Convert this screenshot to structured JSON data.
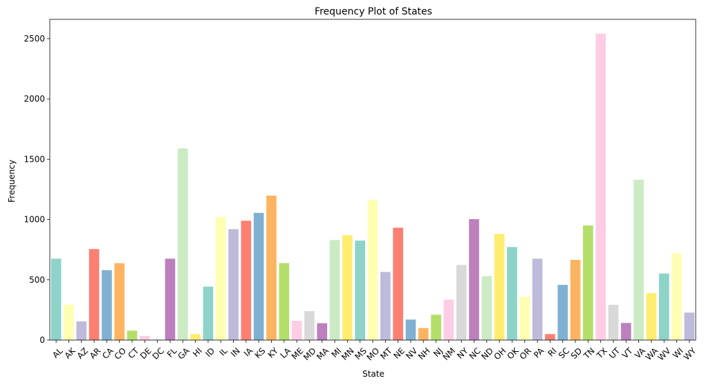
{
  "chart_data": {
    "type": "bar",
    "title": "Frequency Plot of States",
    "xlabel": "State",
    "ylabel": "Frequency",
    "ylim": [
      0,
      2660
    ],
    "yticks": [
      0,
      500,
      1000,
      1500,
      2000,
      2500
    ],
    "grid": false,
    "categories": [
      "AL",
      "AK",
      "AZ",
      "AR",
      "CA",
      "CO",
      "CT",
      "DE",
      "DC",
      "FL",
      "GA",
      "HI",
      "ID",
      "IL",
      "IN",
      "IA",
      "KS",
      "KY",
      "LA",
      "ME",
      "MD",
      "MA",
      "MI",
      "MN",
      "MS",
      "MO",
      "MT",
      "NE",
      "NV",
      "NH",
      "NJ",
      "NM",
      "NY",
      "NC",
      "ND",
      "OH",
      "OK",
      "OR",
      "PA",
      "RI",
      "SC",
      "SD",
      "TN",
      "TX",
      "UT",
      "VT",
      "VA",
      "WA",
      "WV",
      "WI",
      "WY"
    ],
    "values": [
      675,
      293,
      155,
      755,
      580,
      638,
      78,
      35,
      5,
      675,
      1590,
      50,
      443,
      1020,
      920,
      990,
      1055,
      1198,
      638,
      160,
      240,
      140,
      830,
      870,
      825,
      1163,
      565,
      932,
      170,
      100,
      210,
      335,
      623,
      1003,
      530,
      880,
      772,
      360,
      675,
      50,
      458,
      665,
      950,
      2542,
      292,
      142,
      1330,
      390,
      552,
      720,
      228
    ],
    "colors": [
      "#8dd3c7",
      "#ffffb3",
      "#bebada",
      "#fb8072",
      "#80b1d3",
      "#fdb462",
      "#b3de69",
      "#fccde5",
      "#d9d9d9",
      "#bc80bd",
      "#ccebc5",
      "#ffed6f"
    ]
  }
}
